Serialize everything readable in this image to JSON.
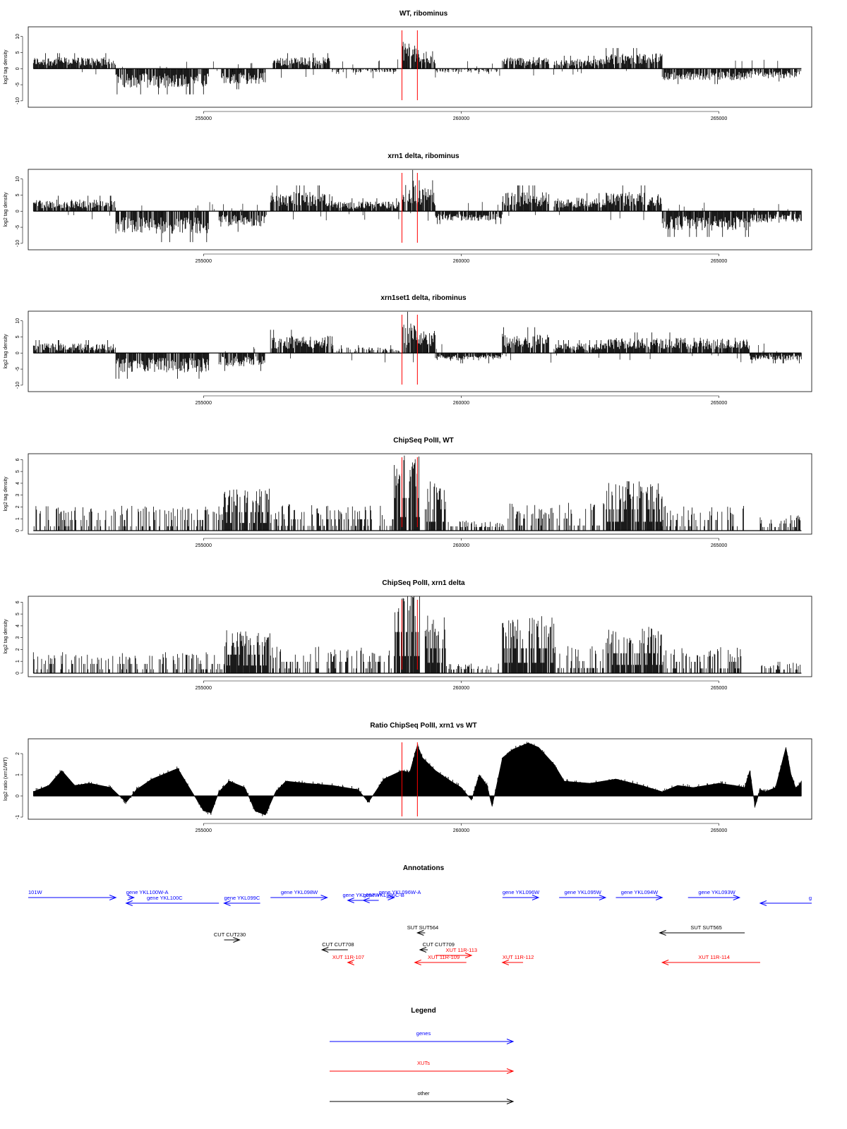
{
  "chart_data": [
    {
      "type": "bar",
      "title": "WT, ribominus",
      "ylabel": "log2 tag density",
      "ylim": [
        -12,
        13
      ],
      "yticks": [
        -10,
        -5,
        0,
        5,
        10
      ],
      "xlim": [
        251600,
        266800
      ],
      "xticks": [
        255000,
        260000,
        265000
      ],
      "vlines": [
        258850,
        259150
      ],
      "segments": [
        {
          "start": 251700,
          "end": 253300,
          "level": 3
        },
        {
          "start": 253300,
          "end": 255100,
          "level": -5
        },
        {
          "start": 255300,
          "end": 256200,
          "level": -4
        },
        {
          "start": 256350,
          "end": 257450,
          "level": 3
        },
        {
          "start": 257500,
          "end": 258800,
          "level": -1
        },
        {
          "start": 258850,
          "end": 259150,
          "level": 7
        },
        {
          "start": 259150,
          "end": 259500,
          "level": 5
        },
        {
          "start": 259500,
          "end": 260800,
          "level": -1
        },
        {
          "start": 260800,
          "end": 261700,
          "level": 3
        },
        {
          "start": 261800,
          "end": 262800,
          "level": 2.5
        },
        {
          "start": 262800,
          "end": 263900,
          "level": 4
        },
        {
          "start": 263900,
          "end": 265600,
          "level": -3
        },
        {
          "start": 265600,
          "end": 266600,
          "level": -2.5
        }
      ]
    },
    {
      "type": "bar",
      "title": "xrn1 delta, ribominus",
      "ylabel": "log2 tag density",
      "ylim": [
        -12,
        13
      ],
      "yticks": [
        -10,
        -5,
        0,
        5,
        10
      ],
      "xlim": [
        251600,
        266800
      ],
      "xticks": [
        255000,
        260000,
        265000
      ],
      "vlines": [
        258850,
        259150
      ],
      "segments": [
        {
          "start": 251700,
          "end": 253300,
          "level": 3
        },
        {
          "start": 253300,
          "end": 255100,
          "level": -6
        },
        {
          "start": 255300,
          "end": 256200,
          "level": -4
        },
        {
          "start": 256300,
          "end": 257500,
          "level": 5
        },
        {
          "start": 257500,
          "end": 258800,
          "level": 2.5
        },
        {
          "start": 258850,
          "end": 259150,
          "level": 8
        },
        {
          "start": 259150,
          "end": 259500,
          "level": 6
        },
        {
          "start": 259500,
          "end": 260800,
          "level": -2.5
        },
        {
          "start": 260800,
          "end": 261700,
          "level": 5
        },
        {
          "start": 261800,
          "end": 262800,
          "level": 3.5
        },
        {
          "start": 262800,
          "end": 263900,
          "level": 5
        },
        {
          "start": 263900,
          "end": 265600,
          "level": -5
        },
        {
          "start": 265600,
          "end": 266600,
          "level": -3
        }
      ]
    },
    {
      "type": "bar",
      "title": "xrn1set1 delta, ribominus",
      "ylabel": "log2 tag density",
      "ylim": [
        -12,
        13
      ],
      "yticks": [
        -10,
        -5,
        0,
        5,
        10
      ],
      "xlim": [
        251600,
        266800
      ],
      "xticks": [
        255000,
        260000,
        265000
      ],
      "vlines": [
        258850,
        259150
      ],
      "segments": [
        {
          "start": 251700,
          "end": 253300,
          "level": 2.5
        },
        {
          "start": 253300,
          "end": 255100,
          "level": -5
        },
        {
          "start": 255300,
          "end": 256200,
          "level": -3.5
        },
        {
          "start": 256300,
          "end": 257500,
          "level": 4.5
        },
        {
          "start": 257500,
          "end": 258800,
          "level": 1.5
        },
        {
          "start": 258850,
          "end": 259150,
          "level": 8
        },
        {
          "start": 259150,
          "end": 259500,
          "level": 6
        },
        {
          "start": 259500,
          "end": 260800,
          "level": -2
        },
        {
          "start": 260800,
          "end": 261700,
          "level": 5
        },
        {
          "start": 261800,
          "end": 262800,
          "level": 2.5
        },
        {
          "start": 262800,
          "end": 263900,
          "level": 4
        },
        {
          "start": 263900,
          "end": 265600,
          "level": 4
        },
        {
          "start": 265600,
          "end": 266600,
          "level": -2
        }
      ]
    },
    {
      "type": "bar",
      "title": "ChipSeq PolII, WT",
      "ylabel": "log2 tag density",
      "ylim": [
        -0.3,
        6.5
      ],
      "yticks": [
        0,
        1,
        2,
        3,
        4,
        5,
        6
      ],
      "xlim": [
        251600,
        266800
      ],
      "xticks": [
        255000,
        260000,
        265000
      ],
      "vlines": [
        258850,
        259150
      ],
      "segments": [
        {
          "start": 251700,
          "end": 255400,
          "level": 1.5
        },
        {
          "start": 255400,
          "end": 256300,
          "level": 2.6
        },
        {
          "start": 256300,
          "end": 258700,
          "level": 1.6
        },
        {
          "start": 258700,
          "end": 259200,
          "level": 4.6
        },
        {
          "start": 259300,
          "end": 259700,
          "level": 3
        },
        {
          "start": 259700,
          "end": 260800,
          "level": 0.6
        },
        {
          "start": 260800,
          "end": 262800,
          "level": 1.7
        },
        {
          "start": 262800,
          "end": 263900,
          "level": 3
        },
        {
          "start": 263900,
          "end": 265500,
          "level": 1.5
        },
        {
          "start": 265800,
          "end": 266600,
          "level": 1
        }
      ]
    },
    {
      "type": "bar",
      "title": "ChipSeq PolII, xrn1 delta",
      "ylabel": "log2 tag density",
      "ylim": [
        -0.3,
        6.5
      ],
      "yticks": [
        0,
        1,
        2,
        3,
        4,
        5,
        6
      ],
      "xlim": [
        251600,
        266800
      ],
      "xticks": [
        255000,
        260000,
        265000
      ],
      "vlines": [
        258850,
        259150
      ],
      "segments": [
        {
          "start": 251700,
          "end": 255400,
          "level": 1.3
        },
        {
          "start": 255400,
          "end": 256300,
          "level": 2.6
        },
        {
          "start": 256300,
          "end": 258700,
          "level": 1.6
        },
        {
          "start": 258700,
          "end": 259200,
          "level": 5.8
        },
        {
          "start": 259300,
          "end": 259700,
          "level": 3.5
        },
        {
          "start": 259700,
          "end": 260800,
          "level": 0.6
        },
        {
          "start": 260800,
          "end": 261800,
          "level": 3.5
        },
        {
          "start": 261800,
          "end": 262800,
          "level": 1.7
        },
        {
          "start": 262800,
          "end": 263900,
          "level": 2.8
        },
        {
          "start": 263900,
          "end": 265500,
          "level": 1.6
        },
        {
          "start": 265800,
          "end": 266600,
          "level": 0.7
        }
      ]
    },
    {
      "type": "area",
      "title": "Ratio ChipSeq PolII, xrn1 vs WT",
      "ylabel": "log2 ratio (xrn1/WT)",
      "ylim": [
        -1.1,
        2.7
      ],
      "yticks": [
        -1,
        0,
        1,
        2
      ],
      "xlim": [
        251600,
        266800
      ],
      "xticks": [
        255000,
        260000,
        265000
      ],
      "vlines": [
        258850,
        259150
      ],
      "x": [
        251700,
        252000,
        252250,
        252500,
        252800,
        253200,
        253500,
        253700,
        254000,
        254500,
        254700,
        255000,
        255150,
        255300,
        255500,
        255800,
        256000,
        256200,
        256400,
        256600,
        257000,
        257500,
        258000,
        258200,
        258500,
        258850,
        259000,
        259150,
        259250,
        259500,
        259800,
        260000,
        260200,
        260350,
        260500,
        260600,
        260800,
        261000,
        261300,
        261500,
        261800,
        262000,
        262500,
        263000,
        263500,
        263900,
        264200,
        264500,
        265000,
        265300,
        265500,
        265600,
        265700,
        265800,
        265900,
        266100,
        266300,
        266400,
        266500,
        266600
      ],
      "values": [
        0.2,
        0.5,
        1.2,
        0.5,
        0.6,
        0.4,
        -0.3,
        0.3,
        0.8,
        1.3,
        0.5,
        -0.7,
        -0.8,
        0.2,
        0.7,
        0.4,
        -0.7,
        -0.9,
        0.2,
        0.7,
        0.6,
        0.5,
        0.3,
        -0.3,
        0.8,
        1.2,
        1.1,
        2.4,
        1.8,
        1.2,
        0.7,
        0.4,
        -0.2,
        1.0,
        0.5,
        -0.5,
        1.8,
        2.2,
        2.5,
        2.3,
        1.5,
        0.7,
        0.6,
        0.8,
        0.5,
        0.2,
        0.5,
        0.4,
        0.6,
        0.5,
        0.4,
        1.2,
        -0.5,
        0.3,
        0.2,
        0.4,
        2.3,
        1.0,
        0.3,
        0.7
      ]
    }
  ],
  "annotations": {
    "title": "Annotations",
    "colors": {
      "genes": "#0000ff",
      "xuts": "#ff0000",
      "other": "#000000"
    },
    "items": [
      {
        "label": "101W",
        "kind": "genes",
        "start": 251600,
        "end": 253300,
        "dir": "right",
        "row": 0,
        "labelAt": 251600
      },
      {
        "label": "gene YKL100W-A",
        "kind": "genes",
        "start": 253550,
        "end": 253650,
        "dir": "right",
        "row": 0,
        "labelAt": 253500
      },
      {
        "label": "gene YKL100C",
        "kind": "genes",
        "start": 253500,
        "end": 255300,
        "dir": "left",
        "row": 1,
        "labelAt": 253900
      },
      {
        "label": "gene YKL099C",
        "kind": "genes",
        "start": 255400,
        "end": 256100,
        "dir": "left",
        "row": 1,
        "labelAt": 255400
      },
      {
        "label": "gene YKL098W",
        "kind": "genes",
        "start": 256300,
        "end": 257400,
        "dir": "right",
        "row": 0,
        "labelAt": 256500
      },
      {
        "label": "gene YKL096W-A",
        "kind": "genes",
        "start": 258550,
        "end": 258700,
        "dir": "right",
        "row": 0,
        "labelAt": 258400
      },
      {
        "label": "gene YKL097W",
        "kind": "genes",
        "start": 257800,
        "end": 258200,
        "dir": "left",
        "row": 2,
        "labelAt": 257700
      },
      {
        "label": "gene YKL096C-B",
        "kind": "genes",
        "start": 258100,
        "end": 258400,
        "dir": "left",
        "row": 2,
        "labelAt": 258100
      },
      {
        "label": "gene YKL096W",
        "kind": "genes",
        "start": 260800,
        "end": 261500,
        "dir": "right",
        "row": 0,
        "labelAt": 260800
      },
      {
        "label": "gene YKL095W",
        "kind": "genes",
        "start": 261900,
        "end": 262800,
        "dir": "right",
        "row": 0,
        "labelAt": 262000
      },
      {
        "label": "gene YKL094W",
        "kind": "genes",
        "start": 263000,
        "end": 263900,
        "dir": "right",
        "row": 0,
        "labelAt": 263100
      },
      {
        "label": "gene YKL093W",
        "kind": "genes",
        "start": 264400,
        "end": 265400,
        "dir": "right",
        "row": 0,
        "labelAt": 264600
      },
      {
        "label": "g",
        "kind": "genes",
        "start": 265800,
        "end": 266800,
        "dir": "left",
        "row": 1,
        "labelAt": 266800
      },
      {
        "label": "CUT CUT230",
        "kind": "other",
        "start": 255400,
        "end": 255700,
        "dir": "right",
        "row": 5,
        "labelAt": 255200
      },
      {
        "label": "CUT CUT708",
        "kind": "other",
        "start": 257300,
        "end": 257800,
        "dir": "left",
        "row": 6,
        "labelAt": 257300
      },
      {
        "label": "SUT SUT564",
        "kind": "other",
        "start": 259150,
        "end": 259300,
        "dir": "left",
        "row": 4,
        "labelAt": 258950
      },
      {
        "label": "CUT CUT709",
        "kind": "other",
        "start": 259200,
        "end": 259350,
        "dir": "left",
        "row": 6,
        "labelAt": 259250
      },
      {
        "label": "SUT SUT565",
        "kind": "other",
        "start": 263850,
        "end": 265500,
        "dir": "left",
        "row": 4,
        "labelAt": 264450
      },
      {
        "label": "XUT 11R-113",
        "kind": "xuts",
        "start": 259500,
        "end": 260200,
        "dir": "right",
        "row": 7,
        "labelAt": 259700
      },
      {
        "label": "XUT 11R-107",
        "kind": "xuts",
        "start": 257800,
        "end": 257900,
        "dir": "left",
        "row": 8,
        "labelAt": 257500
      },
      {
        "label": "XUT 11R-109",
        "kind": "xuts",
        "start": 259100,
        "end": 260100,
        "dir": "left",
        "row": 8,
        "labelAt": 259350
      },
      {
        "label": "XUT 11R-112",
        "kind": "xuts",
        "start": 260800,
        "end": 261200,
        "dir": "left",
        "row": 8,
        "labelAt": 260800
      },
      {
        "label": "XUT 11R-114",
        "kind": "xuts",
        "start": 263900,
        "end": 265800,
        "dir": "left",
        "row": 8,
        "labelAt": 264600
      }
    ]
  },
  "legend": {
    "title": "Legend",
    "items": [
      {
        "label": "genes",
        "color": "#0000ff"
      },
      {
        "label": "XUTs",
        "color": "#ff0000"
      },
      {
        "label": "other",
        "color": "#000000"
      }
    ]
  }
}
